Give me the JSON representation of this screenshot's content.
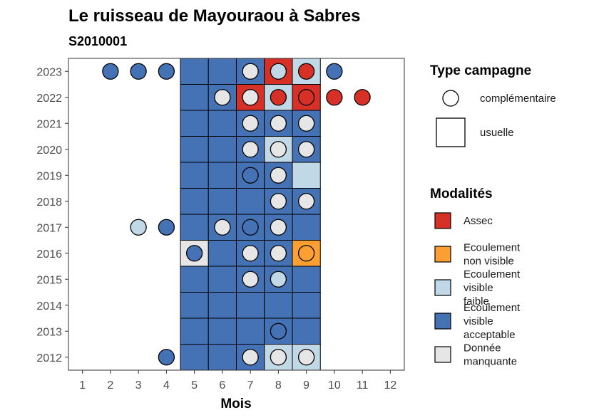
{
  "chart_data": {
    "type": "heatmap",
    "title": "Le ruisseau de Mayouraou à Sabres",
    "subtitle": "S2010001",
    "xlabel": "Mois",
    "ylabel": "",
    "x_ticks": [
      "1",
      "2",
      "3",
      "4",
      "5",
      "6",
      "7",
      "8",
      "9",
      "10",
      "11",
      "12"
    ],
    "y_ticks": [
      "2012",
      "2013",
      "2014",
      "2015",
      "2016",
      "2017",
      "2018",
      "2019",
      "2020",
      "2021",
      "2022",
      "2023"
    ],
    "xlim": [
      0.5,
      12.5
    ],
    "ylim": [
      2011.5,
      2023.5
    ],
    "grid": false,
    "legend_placement": "right",
    "colors": {
      "Assec": "#d73027",
      "Ecoulement non visible": "#fd9f33",
      "Ecoulement visible faible": "#c1d9e7",
      "Ecoulement visible acceptable": "#4472b4",
      "Donnée manquante": "#e6e6e6"
    },
    "legend_campagne": {
      "title": "Type campagne",
      "items": [
        {
          "label": "complémentaire",
          "shape": "circle"
        },
        {
          "label": "usuelle",
          "shape": "square"
        }
      ]
    },
    "legend_modalites": {
      "title": "Modalités",
      "items": [
        {
          "key": "Assec",
          "lines": [
            "Assec"
          ]
        },
        {
          "key": "Ecoulement non visible",
          "lines": [
            "Ecoulement",
            "non visible"
          ]
        },
        {
          "key": "Ecoulement visible faible",
          "lines": [
            "Ecoulement",
            "visible",
            "faible"
          ]
        },
        {
          "key": "Ecoulement visible acceptable",
          "lines": [
            "Ecoulement",
            "visible",
            "acceptable"
          ]
        },
        {
          "key": "Donnée manquante",
          "lines": [
            "Donnée",
            "manquante"
          ]
        }
      ]
    },
    "tiles_usuelle": [
      {
        "year": 2023,
        "month": 5,
        "modalite": "Ecoulement visible acceptable"
      },
      {
        "year": 2023,
        "month": 6,
        "modalite": "Ecoulement visible acceptable"
      },
      {
        "year": 2023,
        "month": 7,
        "modalite": "Ecoulement visible acceptable"
      },
      {
        "year": 2023,
        "month": 8,
        "modalite": "Assec"
      },
      {
        "year": 2023,
        "month": 9,
        "modalite": "Ecoulement visible faible"
      },
      {
        "year": 2022,
        "month": 5,
        "modalite": "Ecoulement visible acceptable"
      },
      {
        "year": 2022,
        "month": 6,
        "modalite": "Ecoulement visible acceptable"
      },
      {
        "year": 2022,
        "month": 7,
        "modalite": "Assec"
      },
      {
        "year": 2022,
        "month": 8,
        "modalite": "Ecoulement visible faible"
      },
      {
        "year": 2022,
        "month": 9,
        "modalite": "Assec"
      },
      {
        "year": 2021,
        "month": 5,
        "modalite": "Ecoulement visible acceptable"
      },
      {
        "year": 2021,
        "month": 6,
        "modalite": "Ecoulement visible acceptable"
      },
      {
        "year": 2021,
        "month": 7,
        "modalite": "Ecoulement visible acceptable"
      },
      {
        "year": 2021,
        "month": 8,
        "modalite": "Ecoulement visible acceptable"
      },
      {
        "year": 2021,
        "month": 9,
        "modalite": "Ecoulement visible acceptable"
      },
      {
        "year": 2020,
        "month": 5,
        "modalite": "Ecoulement visible acceptable"
      },
      {
        "year": 2020,
        "month": 6,
        "modalite": "Ecoulement visible acceptable"
      },
      {
        "year": 2020,
        "month": 7,
        "modalite": "Ecoulement visible acceptable"
      },
      {
        "year": 2020,
        "month": 8,
        "modalite": "Ecoulement visible faible"
      },
      {
        "year": 2020,
        "month": 9,
        "modalite": "Ecoulement visible acceptable"
      },
      {
        "year": 2019,
        "month": 5,
        "modalite": "Ecoulement visible acceptable"
      },
      {
        "year": 2019,
        "month": 6,
        "modalite": "Ecoulement visible acceptable"
      },
      {
        "year": 2019,
        "month": 7,
        "modalite": "Ecoulement visible acceptable"
      },
      {
        "year": 2019,
        "month": 8,
        "modalite": "Ecoulement visible acceptable"
      },
      {
        "year": 2019,
        "month": 9,
        "modalite": "Ecoulement visible faible"
      },
      {
        "year": 2018,
        "month": 5,
        "modalite": "Ecoulement visible acceptable"
      },
      {
        "year": 2018,
        "month": 6,
        "modalite": "Ecoulement visible acceptable"
      },
      {
        "year": 2018,
        "month": 7,
        "modalite": "Ecoulement visible acceptable"
      },
      {
        "year": 2018,
        "month": 8,
        "modalite": "Ecoulement visible acceptable"
      },
      {
        "year": 2018,
        "month": 9,
        "modalite": "Ecoulement visible acceptable"
      },
      {
        "year": 2017,
        "month": 5,
        "modalite": "Ecoulement visible acceptable"
      },
      {
        "year": 2017,
        "month": 6,
        "modalite": "Ecoulement visible acceptable"
      },
      {
        "year": 2017,
        "month": 7,
        "modalite": "Ecoulement visible acceptable"
      },
      {
        "year": 2017,
        "month": 8,
        "modalite": "Ecoulement visible acceptable"
      },
      {
        "year": 2017,
        "month": 9,
        "modalite": "Ecoulement visible acceptable"
      },
      {
        "year": 2016,
        "month": 5,
        "modalite": "Donnée manquante"
      },
      {
        "year": 2016,
        "month": 6,
        "modalite": "Ecoulement visible acceptable"
      },
      {
        "year": 2016,
        "month": 7,
        "modalite": "Ecoulement visible acceptable"
      },
      {
        "year": 2016,
        "month": 8,
        "modalite": "Ecoulement visible acceptable"
      },
      {
        "year": 2016,
        "month": 9,
        "modalite": "Ecoulement non visible"
      },
      {
        "year": 2015,
        "month": 5,
        "modalite": "Ecoulement visible acceptable"
      },
      {
        "year": 2015,
        "month": 6,
        "modalite": "Ecoulement visible acceptable"
      },
      {
        "year": 2015,
        "month": 7,
        "modalite": "Ecoulement visible acceptable"
      },
      {
        "year": 2015,
        "month": 8,
        "modalite": "Ecoulement visible acceptable"
      },
      {
        "year": 2015,
        "month": 9,
        "modalite": "Ecoulement visible acceptable"
      },
      {
        "year": 2014,
        "month": 5,
        "modalite": "Ecoulement visible acceptable"
      },
      {
        "year": 2014,
        "month": 6,
        "modalite": "Ecoulement visible acceptable"
      },
      {
        "year": 2014,
        "month": 7,
        "modalite": "Ecoulement visible acceptable"
      },
      {
        "year": 2014,
        "month": 8,
        "modalite": "Ecoulement visible acceptable"
      },
      {
        "year": 2014,
        "month": 9,
        "modalite": "Ecoulement visible acceptable"
      },
      {
        "year": 2013,
        "month": 5,
        "modalite": "Ecoulement visible acceptable"
      },
      {
        "year": 2013,
        "month": 6,
        "modalite": "Ecoulement visible acceptable"
      },
      {
        "year": 2013,
        "month": 7,
        "modalite": "Ecoulement visible acceptable"
      },
      {
        "year": 2013,
        "month": 8,
        "modalite": "Ecoulement visible acceptable"
      },
      {
        "year": 2013,
        "month": 9,
        "modalite": "Ecoulement visible acceptable"
      },
      {
        "year": 2012,
        "month": 5,
        "modalite": "Ecoulement visible acceptable"
      },
      {
        "year": 2012,
        "month": 6,
        "modalite": "Ecoulement visible acceptable"
      },
      {
        "year": 2012,
        "month": 7,
        "modalite": "Ecoulement visible acceptable"
      },
      {
        "year": 2012,
        "month": 8,
        "modalite": "Ecoulement visible faible"
      },
      {
        "year": 2012,
        "month": 9,
        "modalite": "Ecoulement visible faible"
      }
    ],
    "points_complementaire": [
      {
        "year": 2023,
        "month": 2,
        "modalite": "Ecoulement visible acceptable"
      },
      {
        "year": 2023,
        "month": 3,
        "modalite": "Ecoulement visible acceptable"
      },
      {
        "year": 2023,
        "month": 4,
        "modalite": "Ecoulement visible acceptable"
      },
      {
        "year": 2023,
        "month": 7,
        "modalite": "Donnée manquante"
      },
      {
        "year": 2023,
        "month": 8,
        "modalite": "Ecoulement visible faible"
      },
      {
        "year": 2023,
        "month": 9,
        "modalite": "Assec"
      },
      {
        "year": 2023,
        "month": 10,
        "modalite": "Ecoulement visible acceptable"
      },
      {
        "year": 2022,
        "month": 6,
        "modalite": "Donnée manquante"
      },
      {
        "year": 2022,
        "month": 7,
        "modalite": "Donnée manquante"
      },
      {
        "year": 2022,
        "month": 8,
        "modalite": "Assec"
      },
      {
        "year": 2022,
        "month": 9,
        "modalite": "Assec"
      },
      {
        "year": 2022,
        "month": 10,
        "modalite": "Assec"
      },
      {
        "year": 2022,
        "month": 11,
        "modalite": "Assec"
      },
      {
        "year": 2021,
        "month": 7,
        "modalite": "Donnée manquante"
      },
      {
        "year": 2021,
        "month": 8,
        "modalite": "Donnée manquante"
      },
      {
        "year": 2021,
        "month": 9,
        "modalite": "Donnée manquante"
      },
      {
        "year": 2020,
        "month": 7,
        "modalite": "Donnée manquante"
      },
      {
        "year": 2020,
        "month": 8,
        "modalite": "Donnée manquante"
      },
      {
        "year": 2020,
        "month": 9,
        "modalite": "Donnée manquante"
      },
      {
        "year": 2019,
        "month": 7,
        "modalite": "Ecoulement visible acceptable"
      },
      {
        "year": 2019,
        "month": 8,
        "modalite": "Donnée manquante"
      },
      {
        "year": 2018,
        "month": 8,
        "modalite": "Donnée manquante"
      },
      {
        "year": 2018,
        "month": 9,
        "modalite": "Donnée manquante"
      },
      {
        "year": 2017,
        "month": 3,
        "modalite": "Ecoulement visible faible"
      },
      {
        "year": 2017,
        "month": 4,
        "modalite": "Ecoulement visible acceptable"
      },
      {
        "year": 2017,
        "month": 6,
        "modalite": "Donnée manquante"
      },
      {
        "year": 2017,
        "month": 7,
        "modalite": "Ecoulement visible acceptable"
      },
      {
        "year": 2017,
        "month": 8,
        "modalite": "Donnée manquante"
      },
      {
        "year": 2016,
        "month": 5,
        "modalite": "Ecoulement visible acceptable"
      },
      {
        "year": 2016,
        "month": 7,
        "modalite": "Donnée manquante"
      },
      {
        "year": 2016,
        "month": 8,
        "modalite": "Donnée manquante"
      },
      {
        "year": 2016,
        "month": 9,
        "modalite": "Ecoulement non visible"
      },
      {
        "year": 2015,
        "month": 7,
        "modalite": "Donnée manquante"
      },
      {
        "year": 2015,
        "month": 8,
        "modalite": "Ecoulement visible faible"
      },
      {
        "year": 2013,
        "month": 8,
        "modalite": "Ecoulement visible acceptable"
      },
      {
        "year": 2012,
        "month": 4,
        "modalite": "Ecoulement visible acceptable"
      },
      {
        "year": 2012,
        "month": 7,
        "modalite": "Donnée manquante"
      },
      {
        "year": 2012,
        "month": 8,
        "modalite": "Donnée manquante"
      },
      {
        "year": 2012,
        "month": 9,
        "modalite": "Donnée manquante"
      }
    ]
  }
}
